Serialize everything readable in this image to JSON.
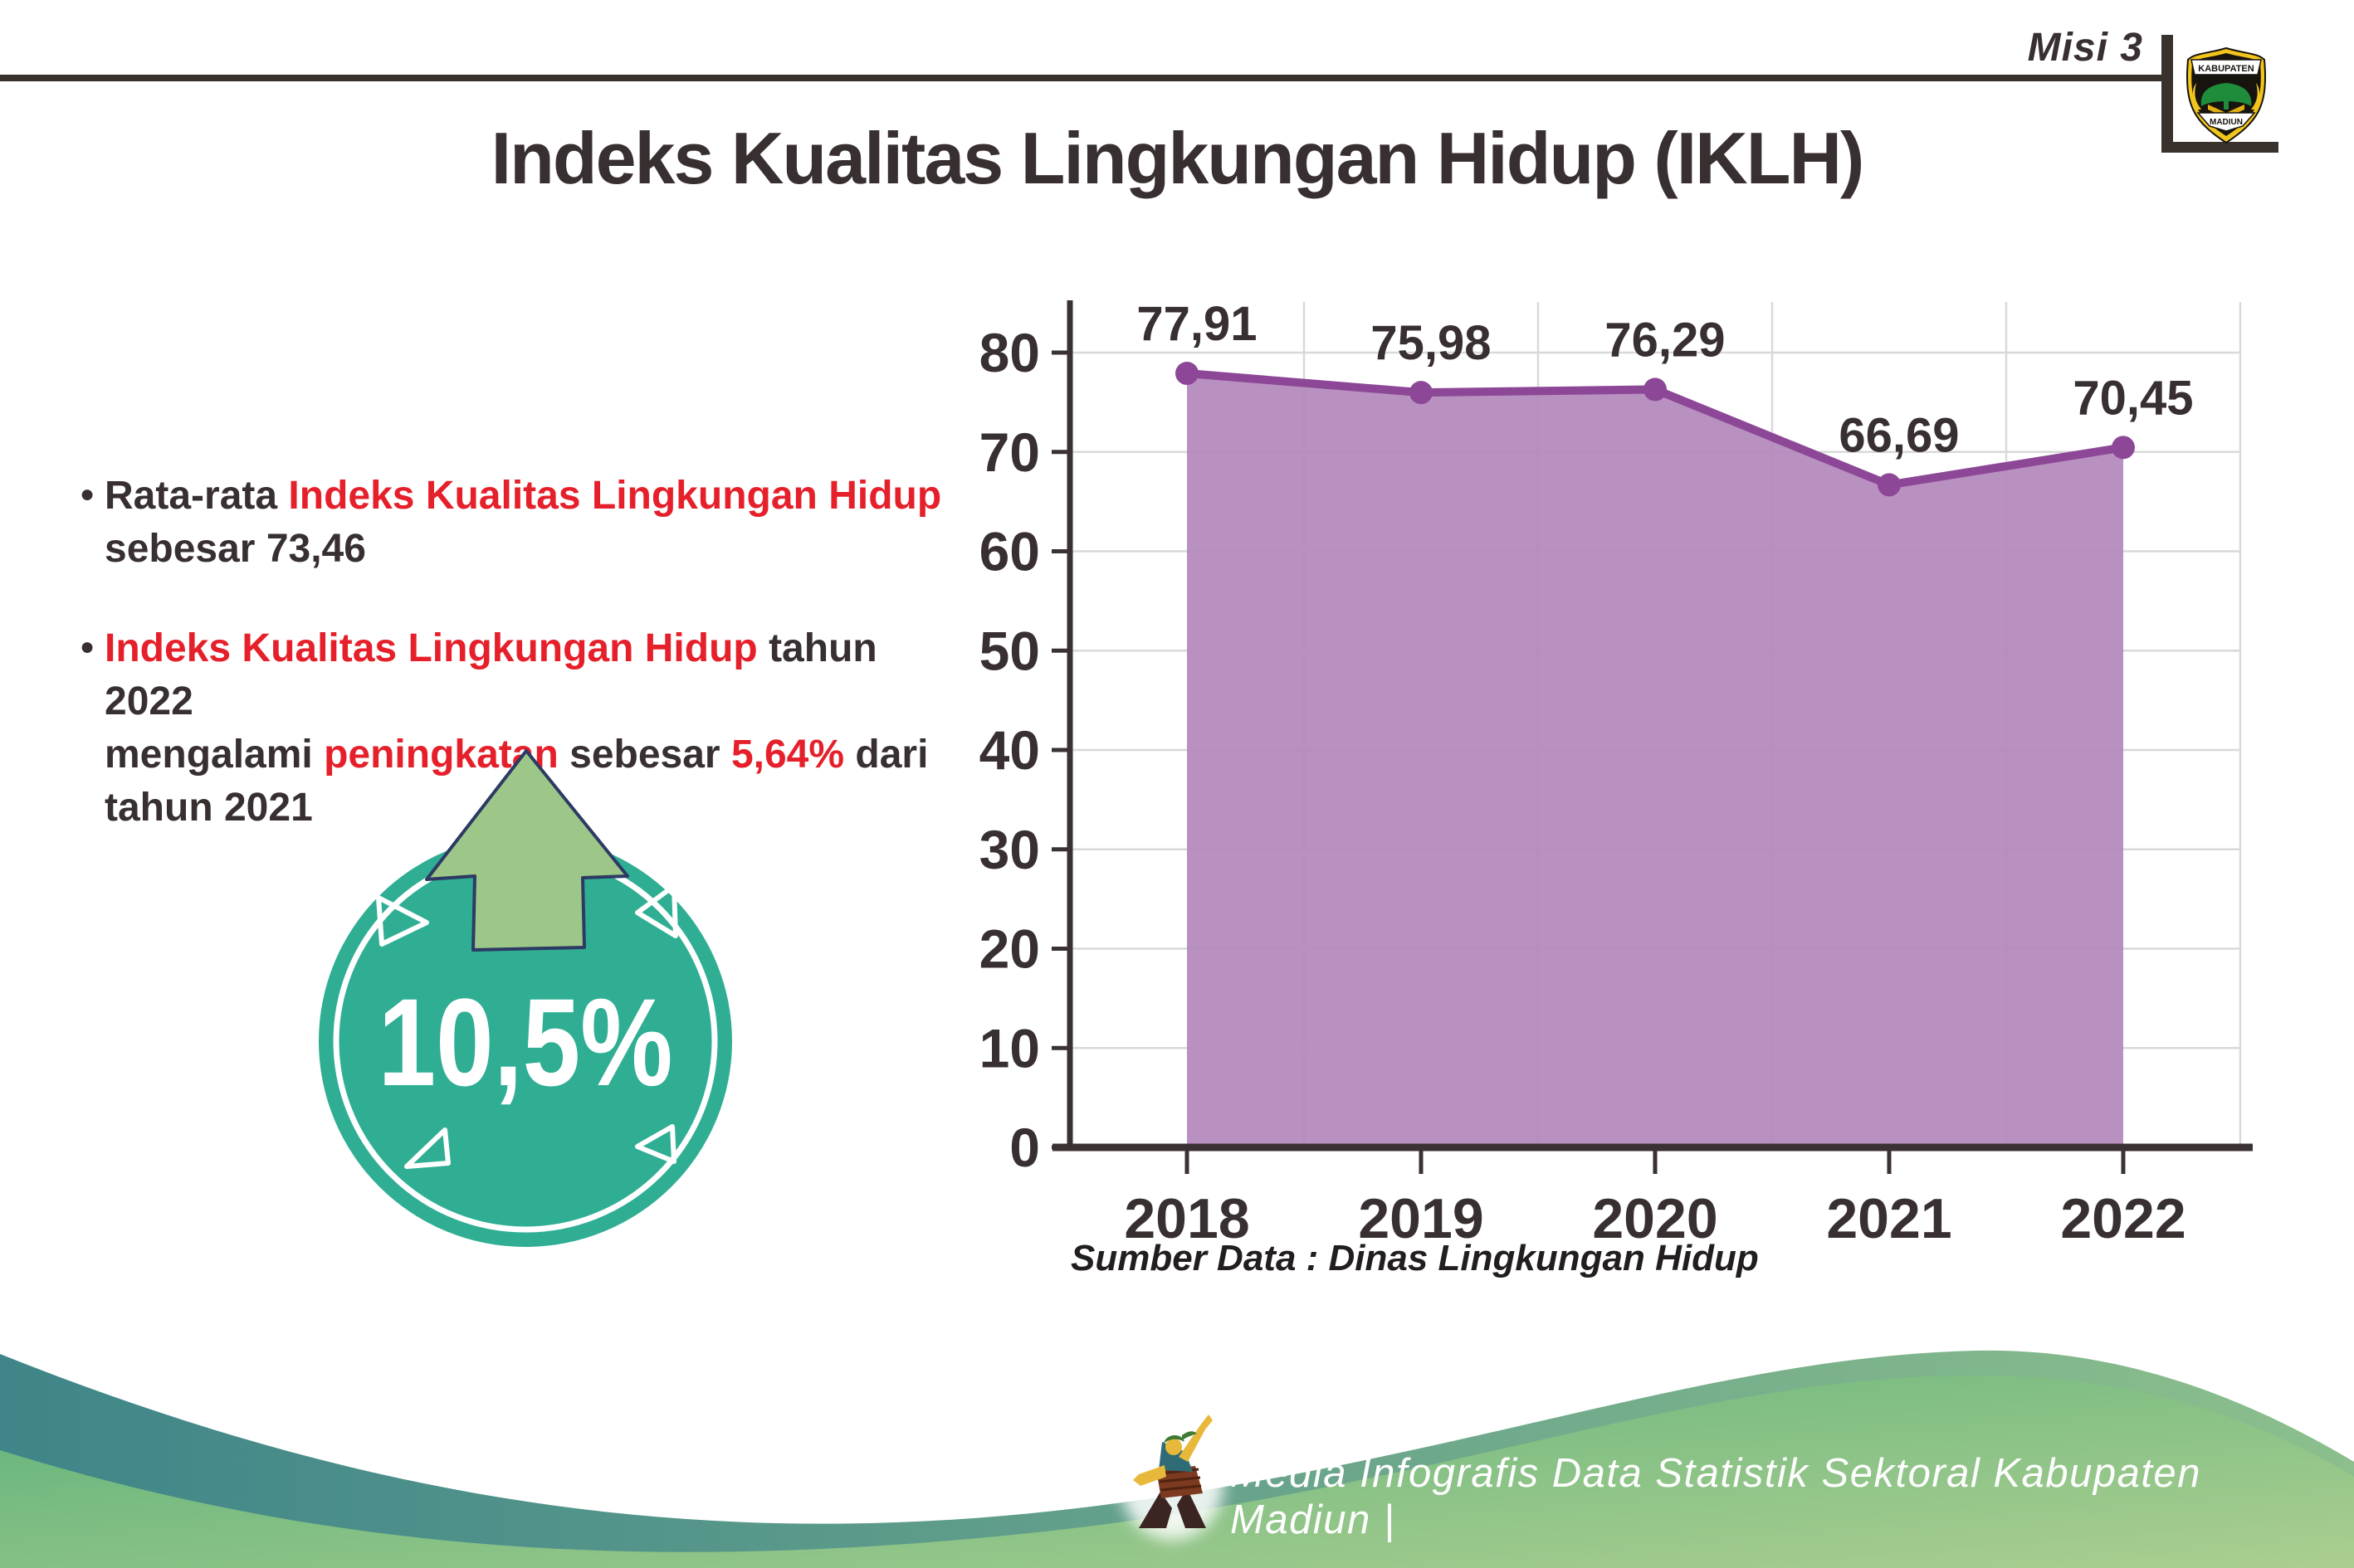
{
  "page": {
    "misi_label": "Misi 3",
    "title": "Indeks Kualitas Lingkungan Hidup (IKLH)"
  },
  "logo": {
    "name": "kabupaten-madiun-crest",
    "top_text": "KABUPATEN",
    "bottom_text": "MADIUN"
  },
  "bullets": [
    {
      "lines": [
        [
          {
            "t": "Rata-rata ",
            "red": false
          },
          {
            "t": "Indeks Kualitas Lingkungan Hidup",
            "red": true
          }
        ],
        [
          {
            "t": "sebesar 73,46",
            "red": false
          }
        ]
      ]
    },
    {
      "lines": [
        [
          {
            "t": "Indeks Kualitas Lingkungan Hidup",
            "red": true
          },
          {
            "t": " tahun 2022",
            "red": false
          }
        ],
        [
          {
            "t": "mengalami ",
            "red": false
          },
          {
            "t": "peningkatan",
            "red": true
          },
          {
            "t": " sebesar ",
            "red": false
          },
          {
            "t": "5,64%",
            "red": true
          },
          {
            "t": " dari",
            "red": false
          }
        ],
        [
          {
            "t": "tahun 2021",
            "red": false
          }
        ]
      ]
    }
  ],
  "badge": {
    "value": "10,5%",
    "meaning": "increase-arrow-badge"
  },
  "chart_data": {
    "type": "area",
    "categories": [
      "2018",
      "2019",
      "2020",
      "2021",
      "2022"
    ],
    "values": [
      77.91,
      75.98,
      76.29,
      66.69,
      70.45
    ],
    "value_labels": [
      "77,91",
      "75,98",
      "76,29",
      "66,69",
      "70,45"
    ],
    "yticks": [
      0,
      10,
      20,
      30,
      40,
      50,
      60,
      70,
      80
    ],
    "ylim": [
      0,
      85
    ],
    "grid": true,
    "legend": "none",
    "title": "",
    "xlabel": "",
    "ylabel": "",
    "source": "Sumber Data : Dinas Lingkungan Hidup"
  },
  "footer": {
    "text": "Media Infografis Data Statistik Sektoral Kabupaten Madiun |",
    "mascot": "dancer-mascot-icon"
  },
  "colors": {
    "accent_red": "#e5202b",
    "text_dark": "#382f31",
    "rule": "#39312b",
    "chart_area": "#b48bbd",
    "chart_line": "#8d4797",
    "grid": "#d9d9d9",
    "axis": "#3a3133",
    "badge_teal": "#2fae94",
    "arrow_green": "#9dc788",
    "arrow_outline": "#2c3a64",
    "wave_teal_start": "#3f8589",
    "wave_teal_end": "#8cbf8d",
    "wave_green_start": "#5eb27a",
    "wave_green_end": "#abce90"
  }
}
